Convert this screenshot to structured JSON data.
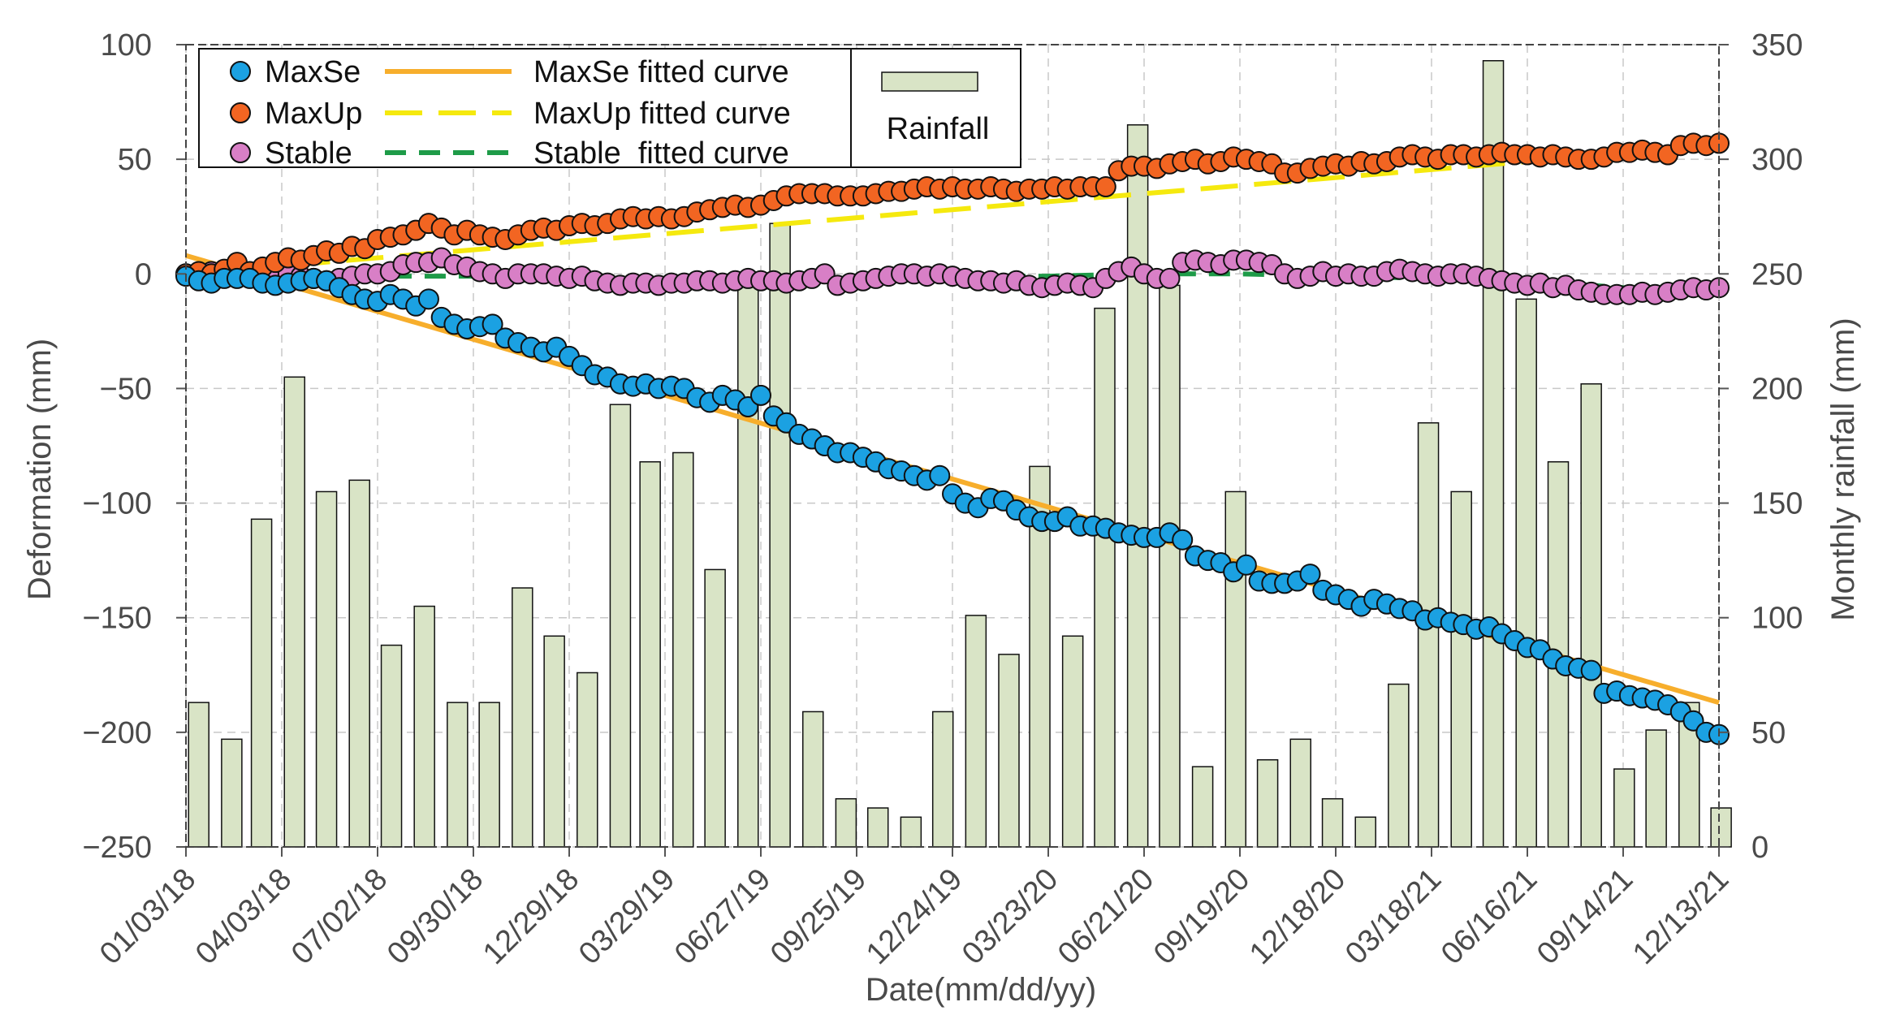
{
  "chart_data": {
    "type": "line",
    "xlabel": "Date(mm/dd/yy)",
    "ylabel": "Deformation (mm)",
    "y2label": "Monthly rainfall (mm)",
    "ylim": [
      -250,
      100
    ],
    "y2lim": [
      0,
      350
    ],
    "yticks": [
      100,
      50,
      0,
      -50,
      -100,
      -150,
      -200,
      -250
    ],
    "y2ticks": [
      350,
      300,
      250,
      200,
      150,
      100,
      50,
      0
    ],
    "xlim": [
      "2018-01-03",
      "2021-12-13"
    ],
    "xticks": [
      {
        "label": "01/03/18",
        "date": "2018-01-03"
      },
      {
        "label": "04/03/18",
        "date": "2018-04-03"
      },
      {
        "label": "07/02/18",
        "date": "2018-07-02"
      },
      {
        "label": "09/30/18",
        "date": "2018-09-30"
      },
      {
        "label": "12/29/18",
        "date": "2018-12-29"
      },
      {
        "label": "03/29/19",
        "date": "2019-03-29"
      },
      {
        "label": "06/27/19",
        "date": "2019-06-27"
      },
      {
        "label": "09/25/19",
        "date": "2019-09-25"
      },
      {
        "label": "12/24/19",
        "date": "2019-12-24"
      },
      {
        "label": "03/23/20",
        "date": "2020-03-23"
      },
      {
        "label": "06/21/20",
        "date": "2020-06-21"
      },
      {
        "label": "09/19/20",
        "date": "2020-09-19"
      },
      {
        "label": "12/18/20",
        "date": "2020-12-18"
      },
      {
        "label": "03/18/21",
        "date": "2021-03-18"
      },
      {
        "label": "06/16/21",
        "date": "2021-06-16"
      },
      {
        "label": "09/14/21",
        "date": "2021-09-14"
      },
      {
        "label": "12/13/21",
        "date": "2021-12-13"
      }
    ],
    "grid": true,
    "legend_position": "top-left",
    "colors": {
      "maxse": "#1ba1e2",
      "maxup": "#f26522",
      "stable": "#d87fc6",
      "maxse_fit": "#f7ae2c",
      "maxup_fit": "#f5e90e",
      "stable_fit": "#1e9b48",
      "rainfall": "#d9e4c6"
    },
    "series": [
      {
        "name": "MaxSe",
        "type": "scatter",
        "dates": [
          "2018-01-03",
          "2018-01-15",
          "2018-01-27",
          "2018-02-08",
          "2018-02-20",
          "2018-03-04",
          "2018-03-16",
          "2018-03-28",
          "2018-04-09",
          "2018-04-21",
          "2018-05-03",
          "2018-05-15",
          "2018-05-27",
          "2018-06-08",
          "2018-06-20",
          "2018-07-02",
          "2018-07-14",
          "2018-07-26",
          "2018-08-07",
          "2018-08-19",
          "2018-08-31",
          "2018-09-12",
          "2018-09-24",
          "2018-10-06",
          "2018-10-18",
          "2018-10-30",
          "2018-11-11",
          "2018-11-23",
          "2018-12-05",
          "2018-12-17",
          "2018-12-29",
          "2019-01-10",
          "2019-01-22",
          "2019-02-03",
          "2019-02-15",
          "2019-02-27",
          "2019-03-11",
          "2019-03-23",
          "2019-04-04",
          "2019-04-16",
          "2019-04-28",
          "2019-05-10",
          "2019-05-22",
          "2019-06-03",
          "2019-06-15",
          "2019-06-27",
          "2019-07-09",
          "2019-07-21",
          "2019-08-02",
          "2019-08-14",
          "2019-08-26",
          "2019-09-07",
          "2019-09-19",
          "2019-10-01",
          "2019-10-13",
          "2019-10-25",
          "2019-11-06",
          "2019-11-18",
          "2019-11-30",
          "2019-12-12",
          "2019-12-24",
          "2020-01-05",
          "2020-01-17",
          "2020-01-29",
          "2020-02-10",
          "2020-02-22",
          "2020-03-05",
          "2020-03-17",
          "2020-03-29",
          "2020-04-10",
          "2020-04-22",
          "2020-05-04",
          "2020-05-16",
          "2020-05-28",
          "2020-06-09",
          "2020-06-21",
          "2020-07-03",
          "2020-07-15",
          "2020-07-27",
          "2020-08-08",
          "2020-08-20",
          "2020-09-01",
          "2020-09-13",
          "2020-09-25",
          "2020-10-07",
          "2020-10-19",
          "2020-10-31",
          "2020-11-12",
          "2020-11-24",
          "2020-12-06",
          "2020-12-18",
          "2020-12-30",
          "2021-01-11",
          "2021-01-23",
          "2021-02-04",
          "2021-02-16",
          "2021-02-28",
          "2021-03-12",
          "2021-03-24",
          "2021-04-05",
          "2021-04-17",
          "2021-04-29",
          "2021-05-11",
          "2021-05-23",
          "2021-06-04",
          "2021-06-16",
          "2021-06-28",
          "2021-07-10",
          "2021-07-22",
          "2021-08-03",
          "2021-08-15",
          "2021-08-27",
          "2021-09-08",
          "2021-09-20",
          "2021-10-02",
          "2021-10-14",
          "2021-10-26",
          "2021-11-07",
          "2021-11-19",
          "2021-12-01",
          "2021-12-13"
        ],
        "values": [
          -1,
          -3,
          -4,
          -2,
          -2,
          -2,
          -4,
          -5,
          -4,
          -3,
          -2,
          -3,
          -6,
          -9,
          -11,
          -12,
          -9,
          -11,
          -14,
          -11,
          -19,
          -22,
          -24,
          -23,
          -22,
          -28,
          -30,
          -32,
          -34,
          -32,
          -36,
          -40,
          -44,
          -45,
          -48,
          -49,
          -48,
          -50,
          -49,
          -50,
          -54,
          -56,
          -53,
          -55,
          -58,
          -53,
          -62,
          -65,
          -70,
          -72,
          -75,
          -78,
          -78,
          -80,
          -82,
          -85,
          -86,
          -88,
          -90,
          -88,
          -96,
          -100,
          -102,
          -98,
          -99,
          -103,
          -106,
          -108,
          -108,
          -106,
          -110,
          -110,
          -111,
          -113,
          -114,
          -115,
          -115,
          -113,
          -116,
          -123,
          -125,
          -126,
          -130,
          -127,
          -134,
          -135,
          -135,
          -134,
          -131,
          -138,
          -140,
          -142,
          -145,
          -142,
          -144,
          -146,
          -147,
          -151,
          -150,
          -152,
          -153,
          -155,
          -154,
          -157,
          -160,
          -163,
          -164,
          -168,
          -171,
          -172,
          -173,
          -183,
          -182,
          -184,
          -185,
          -186,
          -188,
          -191,
          -195,
          -200,
          -201
        ]
      },
      {
        "name": "MaxUp",
        "type": "scatter",
        "dates": [
          "2018-01-03",
          "2018-01-15",
          "2018-01-27",
          "2018-02-08",
          "2018-02-20",
          "2018-03-04",
          "2018-03-16",
          "2018-03-28",
          "2018-04-09",
          "2018-04-21",
          "2018-05-03",
          "2018-05-15",
          "2018-05-27",
          "2018-06-08",
          "2018-06-20",
          "2018-07-02",
          "2018-07-14",
          "2018-07-26",
          "2018-08-07",
          "2018-08-19",
          "2018-08-31",
          "2018-09-12",
          "2018-09-24",
          "2018-10-06",
          "2018-10-18",
          "2018-10-30",
          "2018-11-11",
          "2018-11-23",
          "2018-12-05",
          "2018-12-17",
          "2018-12-29",
          "2019-01-10",
          "2019-01-22",
          "2019-02-03",
          "2019-02-15",
          "2019-02-27",
          "2019-03-11",
          "2019-03-23",
          "2019-04-04",
          "2019-04-16",
          "2019-04-28",
          "2019-05-10",
          "2019-05-22",
          "2019-06-03",
          "2019-06-15",
          "2019-06-27",
          "2019-07-09",
          "2019-07-21",
          "2019-08-02",
          "2019-08-14",
          "2019-08-26",
          "2019-09-07",
          "2019-09-19",
          "2019-10-01",
          "2019-10-13",
          "2019-10-25",
          "2019-11-06",
          "2019-11-18",
          "2019-11-30",
          "2019-12-12",
          "2019-12-24",
          "2020-01-05",
          "2020-01-17",
          "2020-01-29",
          "2020-02-10",
          "2020-02-22",
          "2020-03-05",
          "2020-03-17",
          "2020-03-29",
          "2020-04-10",
          "2020-04-22",
          "2020-05-04",
          "2020-05-16",
          "2020-05-28",
          "2020-06-09",
          "2020-06-21",
          "2020-07-03",
          "2020-07-15",
          "2020-07-27",
          "2020-08-08",
          "2020-08-20",
          "2020-09-01",
          "2020-09-13",
          "2020-09-25",
          "2020-10-07",
          "2020-10-19",
          "2020-10-31",
          "2020-11-12",
          "2020-11-24",
          "2020-12-06",
          "2020-12-18",
          "2020-12-30",
          "2021-01-11",
          "2021-01-23",
          "2021-02-04",
          "2021-02-16",
          "2021-02-28",
          "2021-03-12",
          "2021-03-24",
          "2021-04-05",
          "2021-04-17",
          "2021-04-29",
          "2021-05-11",
          "2021-05-23",
          "2021-06-04",
          "2021-06-16",
          "2021-06-28",
          "2021-07-10",
          "2021-07-22",
          "2021-08-03",
          "2021-08-15",
          "2021-08-27",
          "2021-09-08",
          "2021-09-20",
          "2021-10-02",
          "2021-10-14",
          "2021-10-26",
          "2021-11-07",
          "2021-11-19",
          "2021-12-01",
          "2021-12-13"
        ],
        "values": [
          0,
          1,
          0,
          2,
          5,
          1,
          3,
          5,
          7,
          6,
          8,
          10,
          9,
          12,
          11,
          15,
          16,
          17,
          19,
          22,
          20,
          17,
          19,
          17,
          16,
          15,
          17,
          19,
          20,
          19,
          21,
          22,
          21,
          22,
          24,
          25,
          24,
          25,
          24,
          25,
          27,
          28,
          29,
          30,
          29,
          30,
          32,
          34,
          35,
          35,
          35,
          34,
          34,
          34,
          35,
          36,
          36,
          37,
          38,
          37,
          38,
          37,
          37,
          38,
          37,
          36,
          37,
          37,
          38,
          37,
          38,
          38,
          38,
          45,
          47,
          47,
          46,
          48,
          49,
          50,
          48,
          49,
          51,
          50,
          49,
          48,
          44,
          44,
          46,
          47,
          48,
          47,
          49,
          48,
          49,
          51,
          52,
          51,
          50,
          52,
          52,
          51,
          52,
          53,
          52,
          52,
          51,
          52,
          51,
          50,
          50,
          51,
          53,
          53,
          54,
          53,
          52,
          56,
          57,
          56,
          57
        ]
      },
      {
        "name": "Stable",
        "type": "scatter",
        "dates": [
          "2018-01-03",
          "2018-01-15",
          "2018-01-27",
          "2018-02-08",
          "2018-02-20",
          "2018-03-04",
          "2018-03-16",
          "2018-03-28",
          "2018-04-09",
          "2018-04-21",
          "2018-05-03",
          "2018-05-15",
          "2018-05-27",
          "2018-06-08",
          "2018-06-20",
          "2018-07-02",
          "2018-07-14",
          "2018-07-26",
          "2018-08-07",
          "2018-08-19",
          "2018-08-31",
          "2018-09-12",
          "2018-09-24",
          "2018-10-06",
          "2018-10-18",
          "2018-10-30",
          "2018-11-11",
          "2018-11-23",
          "2018-12-05",
          "2018-12-17",
          "2018-12-29",
          "2019-01-10",
          "2019-01-22",
          "2019-02-03",
          "2019-02-15",
          "2019-02-27",
          "2019-03-11",
          "2019-03-23",
          "2019-04-04",
          "2019-04-16",
          "2019-04-28",
          "2019-05-10",
          "2019-05-22",
          "2019-06-03",
          "2019-06-15",
          "2019-06-27",
          "2019-07-09",
          "2019-07-21",
          "2019-08-02",
          "2019-08-14",
          "2019-08-26",
          "2019-09-07",
          "2019-09-19",
          "2019-10-01",
          "2019-10-13",
          "2019-10-25",
          "2019-11-06",
          "2019-11-18",
          "2019-11-30",
          "2019-12-12",
          "2019-12-24",
          "2020-01-05",
          "2020-01-17",
          "2020-01-29",
          "2020-02-10",
          "2020-02-22",
          "2020-03-05",
          "2020-03-17",
          "2020-03-29",
          "2020-04-10",
          "2020-04-22",
          "2020-05-04",
          "2020-05-16",
          "2020-05-28",
          "2020-06-09",
          "2020-06-21",
          "2020-07-03",
          "2020-07-15",
          "2020-07-27",
          "2020-08-08",
          "2020-08-20",
          "2020-09-01",
          "2020-09-13",
          "2020-09-25",
          "2020-10-07",
          "2020-10-19",
          "2020-10-31",
          "2020-11-12",
          "2020-11-24",
          "2020-12-06",
          "2020-12-18",
          "2020-12-30",
          "2021-01-11",
          "2021-01-23",
          "2021-02-04",
          "2021-02-16",
          "2021-02-28",
          "2021-03-12",
          "2021-03-24",
          "2021-04-05",
          "2021-04-17",
          "2021-04-29",
          "2021-05-11",
          "2021-05-23",
          "2021-06-04",
          "2021-06-16",
          "2021-06-28",
          "2021-07-10",
          "2021-07-22",
          "2021-08-03",
          "2021-08-15",
          "2021-08-27",
          "2021-09-08",
          "2021-09-20",
          "2021-10-02",
          "2021-10-14",
          "2021-10-26",
          "2021-11-07",
          "2021-11-19",
          "2021-12-01",
          "2021-12-13"
        ],
        "values": [
          0,
          0,
          1,
          0,
          0,
          -1,
          -2,
          -1,
          0,
          -1,
          -2,
          -3,
          -2,
          -1,
          0,
          0,
          1,
          4,
          5,
          5,
          7,
          4,
          3,
          1,
          0,
          -2,
          0,
          0,
          0,
          -1,
          -2,
          -1,
          -3,
          -4,
          -5,
          -4,
          -4,
          -5,
          -4,
          -4,
          -3,
          -3,
          -4,
          -3,
          -2,
          -3,
          -3,
          -4,
          -3,
          -2,
          0,
          -5,
          -4,
          -3,
          -2,
          -1,
          0,
          0,
          -1,
          0,
          -1,
          -2,
          -3,
          -3,
          -4,
          -3,
          -5,
          -6,
          -5,
          -4,
          -5,
          -6,
          -2,
          1,
          3,
          0,
          -2,
          -2,
          5,
          6,
          5,
          4,
          6,
          6,
          5,
          4,
          0,
          -2,
          -1,
          1,
          -1,
          0,
          -1,
          -1,
          1,
          2,
          1,
          0,
          -1,
          0,
          0,
          -1,
          -2,
          -3,
          -4,
          -5,
          -4,
          -6,
          -5,
          -7,
          -8,
          -9,
          -9,
          -9,
          -8,
          -9,
          -8,
          -7,
          -6,
          -7,
          -6
        ]
      },
      {
        "name": "MaxSe fitted curve",
        "type": "line",
        "dates": [
          "2018-01-03",
          "2021-12-13"
        ],
        "values": [
          8,
          -187
        ]
      },
      {
        "name": "MaxUp fitted curve",
        "type": "line",
        "dates": [
          "2018-01-03",
          "2021-12-13"
        ],
        "values": [
          0,
          56
        ]
      },
      {
        "name": "Stable  fitted curve",
        "type": "line",
        "dates": [
          "2018-01-03",
          "2018-04-03",
          "2018-07-02",
          "2018-09-30",
          "2018-12-29",
          "2019-03-29",
          "2019-06-27",
          "2019-09-25",
          "2019-12-24",
          "2020-03-23",
          "2020-06-21",
          "2020-09-19",
          "2020-12-18",
          "2021-03-18",
          "2021-06-16",
          "2021-09-14",
          "2021-12-13"
        ],
        "values": [
          1,
          0,
          -1,
          -1,
          -2,
          -2,
          -2,
          -2,
          -1,
          -1,
          0,
          0,
          -1,
          -2,
          -3,
          -6,
          -8
        ]
      },
      {
        "name": "Rainfall",
        "type": "bar",
        "axis": "right",
        "dates": [
          "2018-01-15",
          "2018-02-15",
          "2018-03-15",
          "2018-04-15",
          "2018-05-15",
          "2018-06-15",
          "2018-07-15",
          "2018-08-15",
          "2018-09-15",
          "2018-10-15",
          "2018-11-15",
          "2018-12-15",
          "2019-01-15",
          "2019-02-15",
          "2019-03-15",
          "2019-04-15",
          "2019-05-15",
          "2019-06-15",
          "2019-07-15",
          "2019-08-15",
          "2019-09-15",
          "2019-10-15",
          "2019-11-15",
          "2019-12-15",
          "2020-01-15",
          "2020-02-15",
          "2020-03-15",
          "2020-04-15",
          "2020-05-15",
          "2020-06-15",
          "2020-07-15",
          "2020-08-15",
          "2020-09-15",
          "2020-10-15",
          "2020-11-15",
          "2020-12-15",
          "2021-01-15",
          "2021-02-15",
          "2021-03-15",
          "2021-04-15",
          "2021-05-15",
          "2021-06-15",
          "2021-07-15",
          "2021-08-15",
          "2021-09-15",
          "2021-10-15",
          "2021-11-15",
          "2021-12-15"
        ],
        "values": [
          63,
          47,
          143,
          205,
          155,
          160,
          88,
          105,
          63,
          63,
          113,
          92,
          76,
          193,
          168,
          172,
          121,
          248,
          272,
          59,
          21,
          17,
          13,
          59,
          101,
          84,
          166,
          92,
          235,
          315,
          245,
          35,
          155,
          38,
          47,
          21,
          13,
          71,
          185,
          155,
          343,
          239,
          168,
          202,
          34,
          51,
          63,
          17
        ]
      }
    ]
  }
}
